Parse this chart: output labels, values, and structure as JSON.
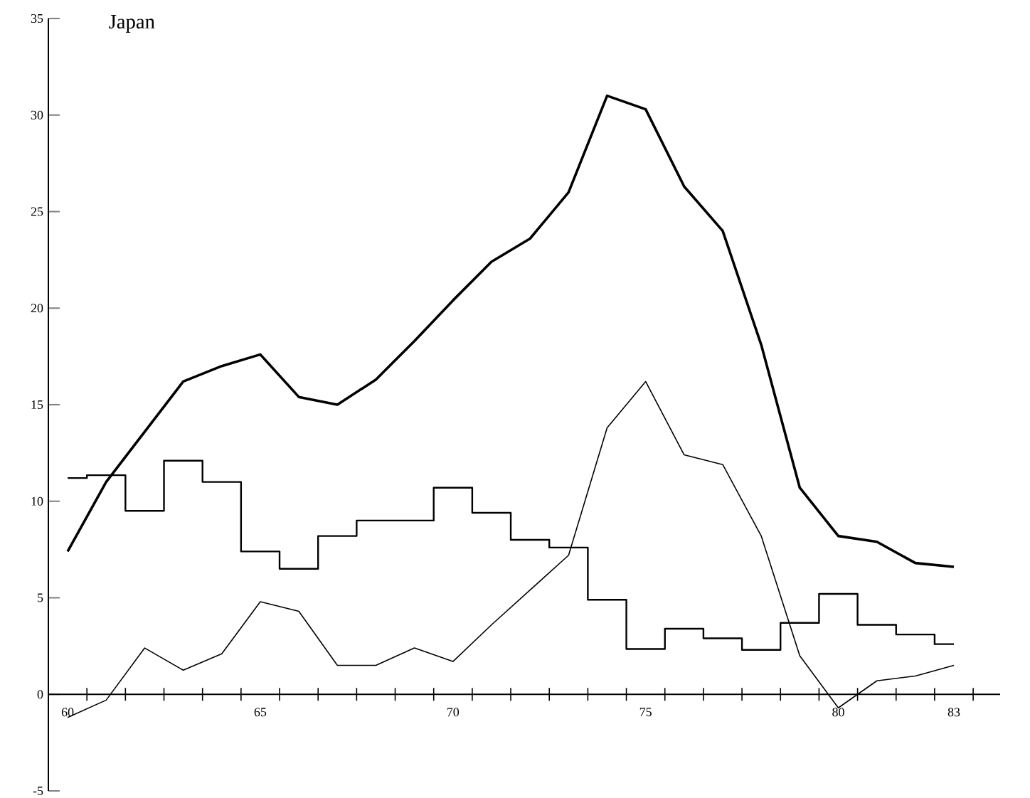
{
  "chart_data": {
    "type": "line",
    "title": "Japan",
    "x": [
      60,
      61,
      62,
      63,
      64,
      65,
      66,
      67,
      68,
      69,
      70,
      71,
      72,
      73,
      74,
      75,
      76,
      77,
      78,
      79,
      80,
      81,
      82,
      83
    ],
    "series": [
      {
        "color": "#000000",
        "values": [
          7.4,
          11.0,
          13.6,
          16.2,
          17.0,
          17.6,
          15.4,
          15.0,
          16.3,
          18.3,
          20.4,
          22.4,
          23.6,
          26.0,
          31.0,
          30.3,
          26.3,
          24.0,
          18.1,
          10.7,
          8.2,
          7.9,
          6.8,
          6.6
        ]
      },
      {
        "type": "step",
        "color": "#000000",
        "values": [
          11.2,
          11.35,
          9.5,
          12.1,
          11.0,
          7.4,
          6.5,
          8.2,
          9.0,
          9.0,
          10.7,
          9.4,
          8.0,
          7.6,
          4.9,
          2.35,
          3.4,
          2.9,
          2.3,
          3.7,
          5.2,
          3.6,
          3.1,
          2.6
        ]
      },
      {
        "color": "#000000",
        "values": [
          -1.2,
          -0.3,
          2.4,
          1.25,
          2.1,
          4.8,
          4.3,
          1.5,
          1.5,
          2.4,
          1.7,
          3.6,
          5.4,
          7.2,
          13.8,
          16.2,
          12.4,
          11.9,
          8.2,
          2.0,
          -0.7,
          0.7,
          0.95,
          1.5
        ]
      }
    ],
    "xlim": [
      59.5,
      84.2
    ],
    "xticks": [
      60,
      65,
      70,
      75,
      80,
      83,
      {
        "value": 60.5,
        "label": null
      },
      {
        "value": 61.5,
        "label": null
      },
      {
        "value": 62.5,
        "label": null
      },
      {
        "value": 63.5,
        "label": null
      },
      {
        "value": 64.5,
        "label": null
      },
      {
        "value": 65.5,
        "label": null
      },
      {
        "value": 66.5,
        "label": null
      },
      {
        "value": 67.5,
        "label": null
      },
      {
        "value": 68.5,
        "label": null
      },
      {
        "value": 69.5,
        "label": null
      },
      {
        "value": 70.5,
        "label": null
      },
      {
        "value": 71.5,
        "label": null
      },
      {
        "value": 72.5,
        "label": null
      },
      {
        "value": 73.5,
        "label": null
      },
      {
        "value": 74.5,
        "label": null
      },
      {
        "value": 75.5,
        "label": null
      },
      {
        "value": 76.5,
        "label": null
      },
      {
        "value": 77.5,
        "label": null
      },
      {
        "value": 78.5,
        "label": null
      },
      {
        "value": 79.5,
        "label": null
      },
      {
        "value": 80.5,
        "label": null
      },
      {
        "value": 81.5,
        "label": null
      },
      {
        "value": 82.5,
        "label": null
      },
      {
        "value": 83.5,
        "label": null
      }
    ],
    "ylim": [
      -5,
      35
    ],
    "yticks": [
      -5,
      0,
      5,
      10,
      15,
      20,
      25,
      30,
      35
    ],
    "grid": false,
    "marker": "none",
    "line_style": "solid"
  }
}
